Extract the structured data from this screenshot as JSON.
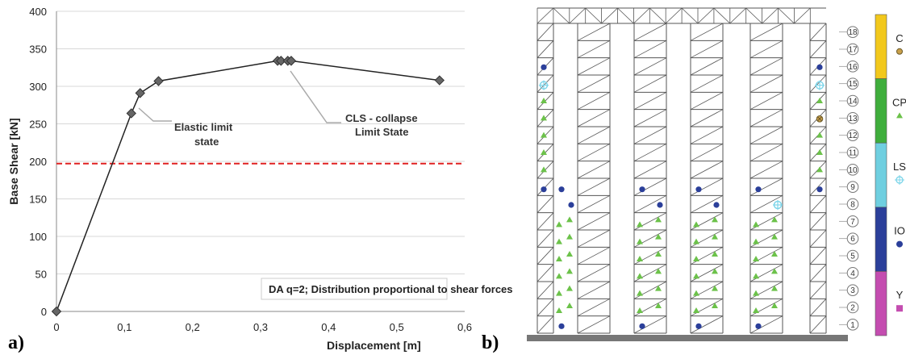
{
  "chart_data": [
    {
      "type": "line",
      "panel": "a)",
      "xlabel": "Displacement [m]",
      "ylabel": "Base Shear [kN]",
      "xlim": [
        0,
        0.6
      ],
      "ylim": [
        0,
        400
      ],
      "xticks": [
        "0",
        "0,1",
        "0,2",
        "0,3",
        "0,4",
        "0,5",
        "0,6"
      ],
      "yticks": [
        "0",
        "50",
        "100",
        "150",
        "200",
        "250",
        "300",
        "350",
        "400"
      ],
      "grid": "horizontal",
      "series": [
        {
          "x": [
            0.0,
            0.11,
            0.123,
            0.15,
            0.325,
            0.33,
            0.34,
            0.345,
            0.563
          ],
          "y": [
            0,
            264,
            291,
            307,
            334,
            334,
            334,
            334,
            308
          ]
        }
      ],
      "reference_line": {
        "y": 197,
        "color": "#e02020",
        "style": "dashed"
      },
      "annotations": [
        {
          "lines": [
            "Elastic limit",
            "state"
          ],
          "x": 0.123,
          "y": 291
        },
        {
          "lines": [
            "CLS - collapse",
            "Limit State"
          ],
          "x": 0.345,
          "y": 334
        }
      ],
      "note": "DA q=2; Distribution proportional to shear forces"
    },
    {
      "type": "diagram",
      "panel": "b)",
      "stories": [
        "1",
        "2",
        "3",
        "4",
        "5",
        "6",
        "7",
        "8",
        "9",
        "10",
        "11",
        "12",
        "13",
        "14",
        "15",
        "16",
        "17",
        "18"
      ],
      "legend": [
        {
          "label": "C",
          "color": "#f2c81c",
          "marker": "circle-x",
          "marker_color": "#c08a2a"
        },
        {
          "label": "CP",
          "color": "#3fae3c",
          "marker": "triangle",
          "marker_color": "#6cc24a"
        },
        {
          "label": "LS",
          "color": "#6fcfe0",
          "marker": "crosshair",
          "marker_color": "#7fd6ea"
        },
        {
          "label": "IO",
          "color": "#2b3f9a",
          "marker": "circle",
          "marker_color": "#2b3f9a"
        },
        {
          "label": "Y",
          "color": "#c44db0",
          "marker": "square",
          "marker_color": "#c44db0"
        }
      ],
      "colors": {
        "IO": "#2b3f9a",
        "CP": "#6cc24a",
        "LS": "#7fd6ea",
        "C": "#b0853a"
      }
    }
  ]
}
